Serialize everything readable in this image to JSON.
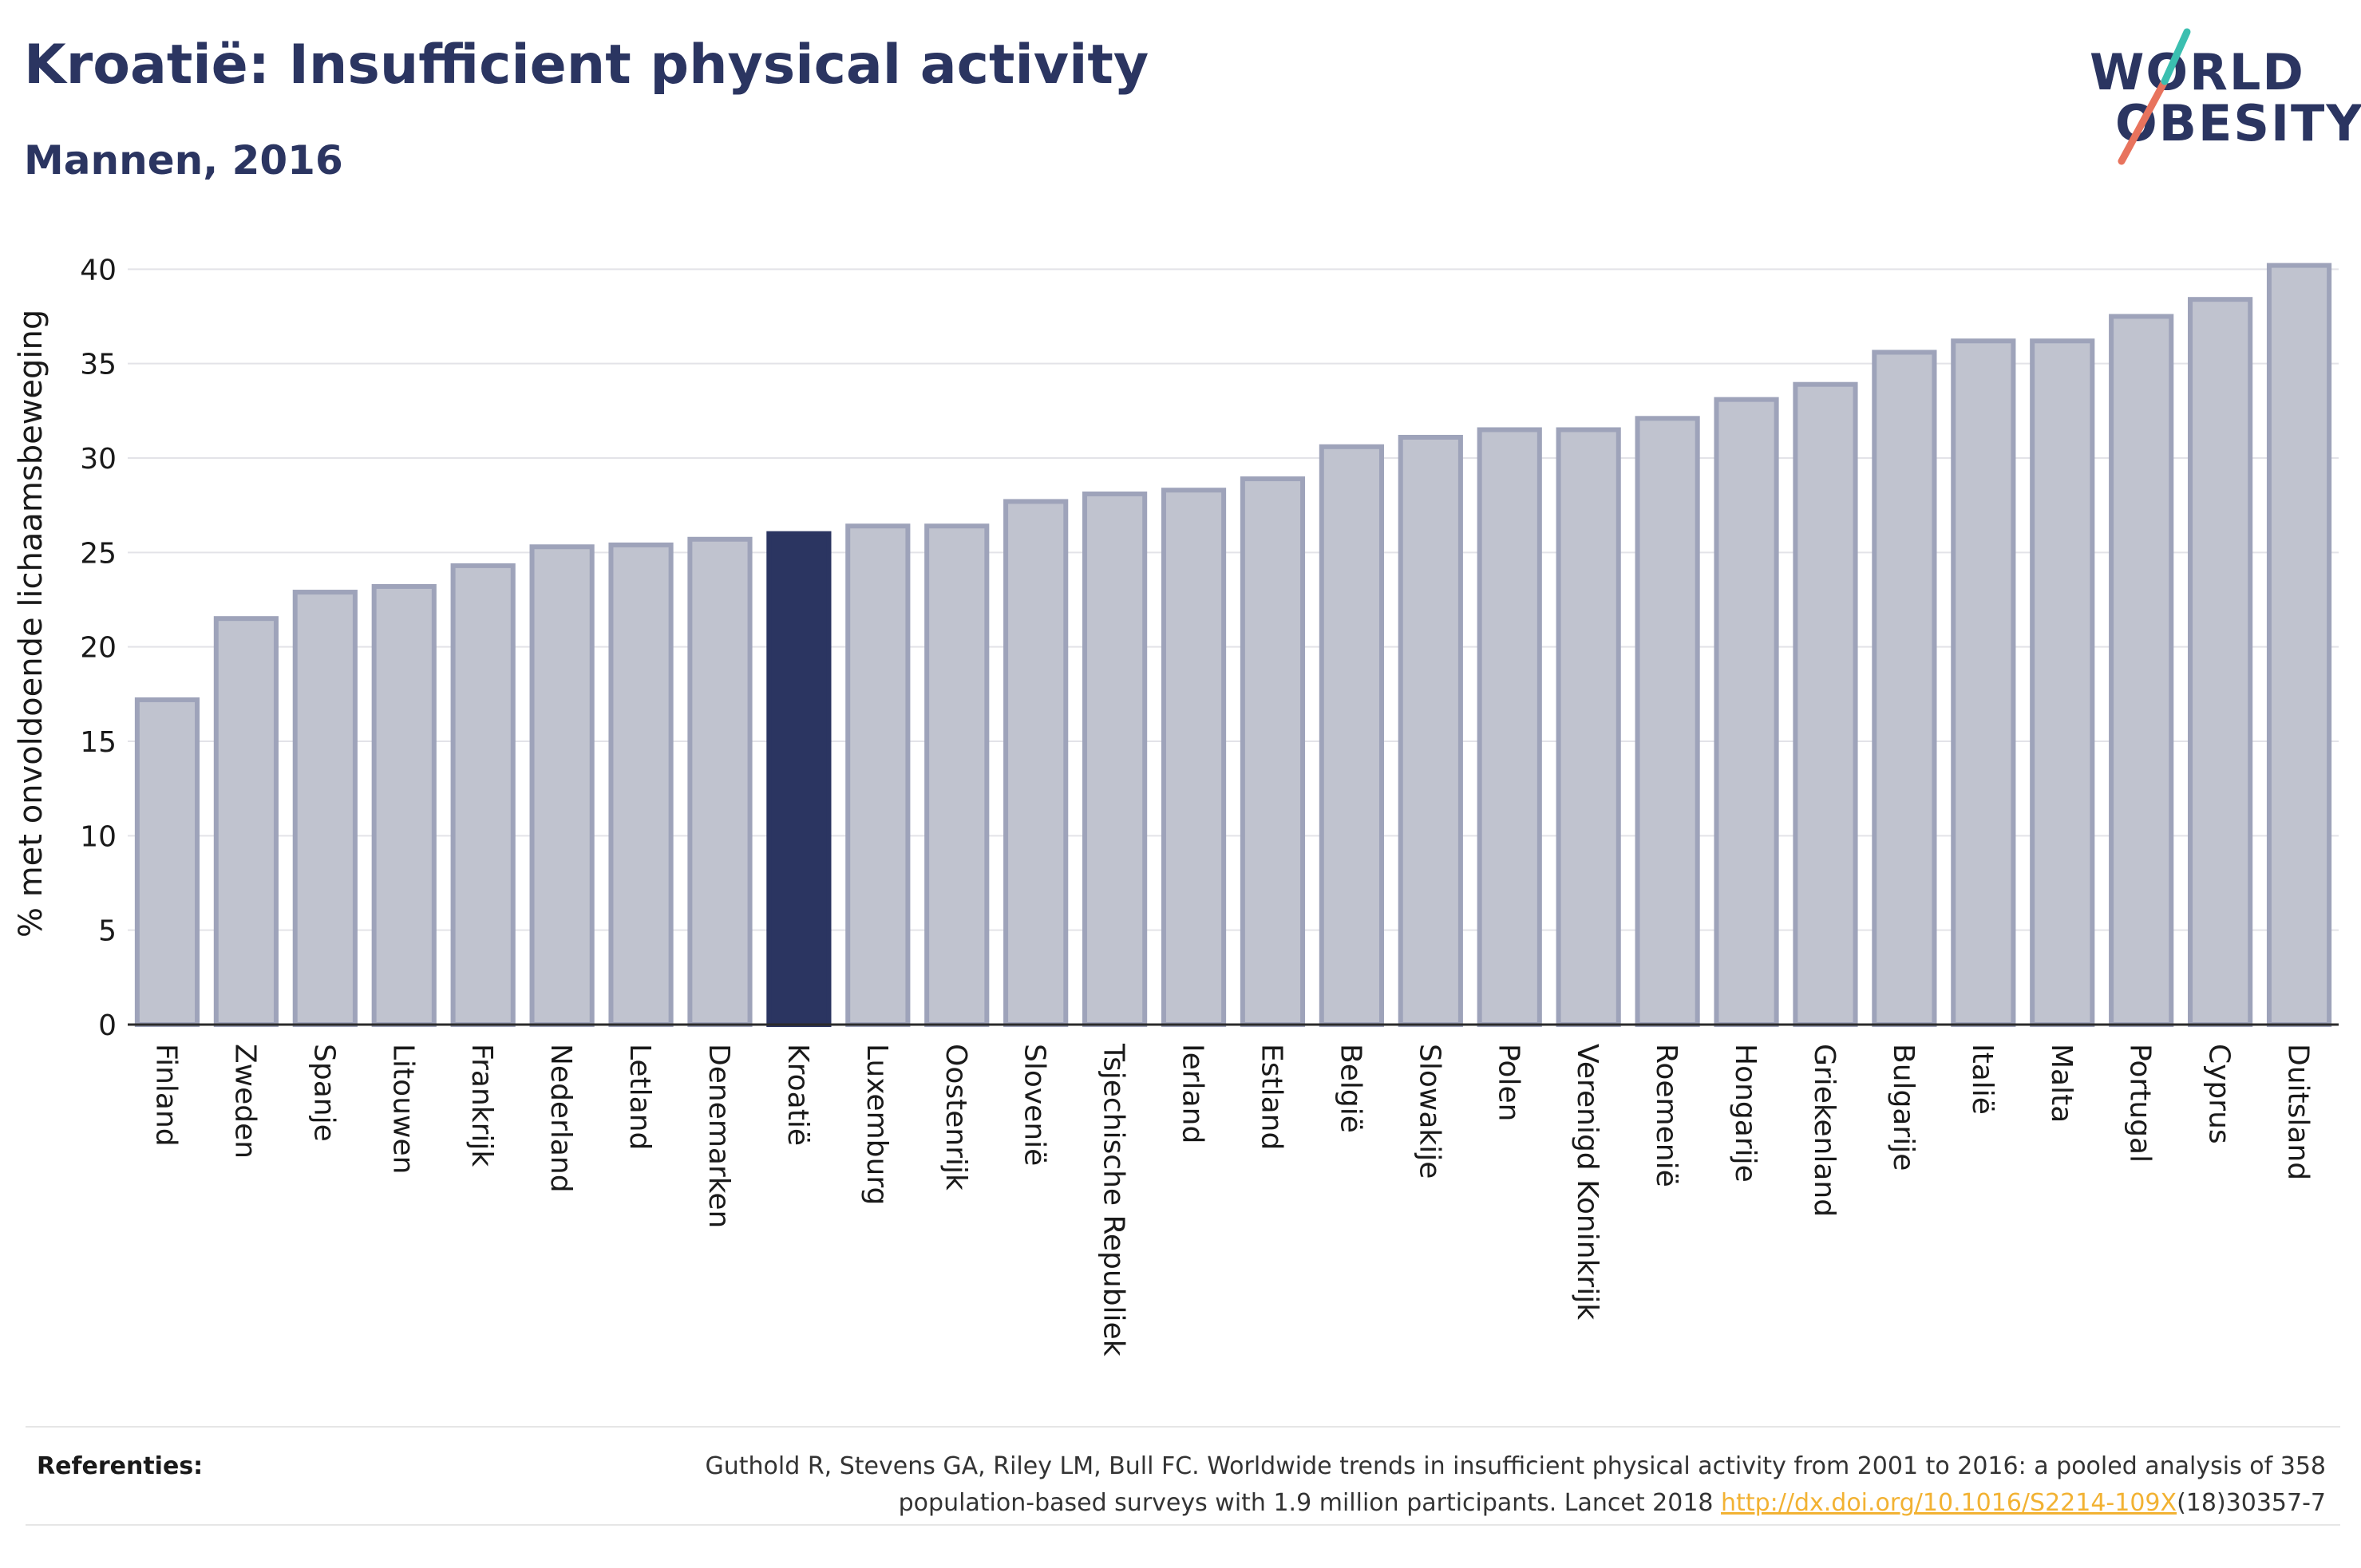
{
  "title": "Kroatië: Insufficient physical activity",
  "subtitle": "Mannen, 2016",
  "logo": {
    "line1": "WORLD",
    "line2": "OBESITY"
  },
  "colors": {
    "bar": "#c0c3cf",
    "bar_border": "#9ea3ba",
    "highlight": "#2b3561",
    "title": "#2b3561",
    "link": "#f2b233",
    "logo_slash_teal": "#3bbfb0",
    "logo_slash_coral": "#e8735d"
  },
  "chart_data": {
    "type": "bar",
    "ylabel": "% met onvoldoende lichaamsbeweging",
    "ylim": [
      0,
      42
    ],
    "yticks": [
      0,
      5,
      10,
      15,
      20,
      25,
      30,
      35,
      40
    ],
    "grid": true,
    "highlight": "Kroatië",
    "categories": [
      "Finland",
      "Zweden",
      "Spanje",
      "Litouwen",
      "Frankrijk",
      "Nederland",
      "Letland",
      "Denemarken",
      "Kroatië",
      "Luxemburg",
      "Oostenrijk",
      "Slovenië",
      "Tsjechische Republiek",
      "Ierland",
      "Estland",
      "België",
      "Slowakije",
      "Polen",
      "Verenigd Koninkrijk",
      "Roemenië",
      "Hongarije",
      "Griekenland",
      "Bulgarije",
      "Italië",
      "Malta",
      "Portugal",
      "Cyprus",
      "Duitsland"
    ],
    "values": [
      17.2,
      21.5,
      22.9,
      23.2,
      24.3,
      25.3,
      25.4,
      25.7,
      26.0,
      26.4,
      26.4,
      27.7,
      28.1,
      28.3,
      28.9,
      30.6,
      31.1,
      31.5,
      31.5,
      32.1,
      33.1,
      33.9,
      35.6,
      36.2,
      36.2,
      37.5,
      38.4,
      40.2
    ]
  },
  "references": {
    "label": "Referenties:",
    "text_line1": "Guthold R, Stevens GA, Riley LM, Bull FC. Worldwide trends in insufficient physical activity from 2001 to 2016: a pooled analysis of 358",
    "text_line2": "population-based surveys with 1.9 million participants. Lancet 2018",
    "link": "http://dx.doi.org/10.1016/S2214-109X",
    "suffix": "(18)30357-7"
  }
}
